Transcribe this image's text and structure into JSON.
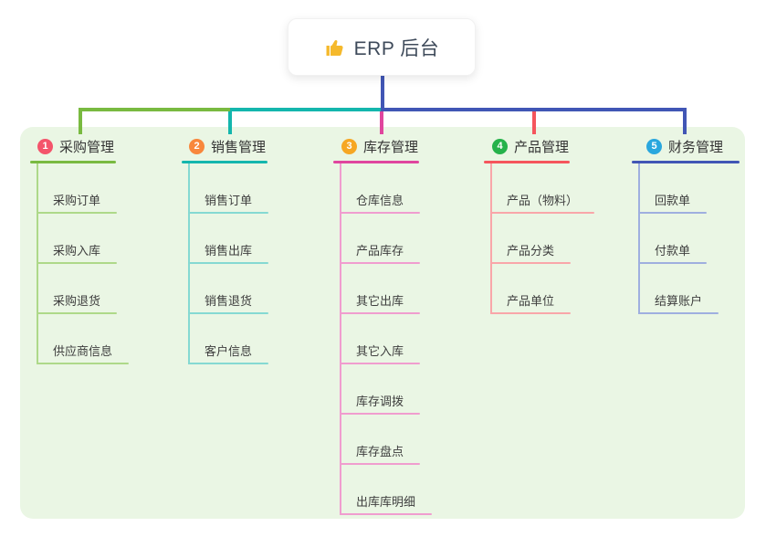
{
  "root": {
    "title": "ERP 后台",
    "icon": "thumbs-up-icon"
  },
  "colors": {
    "background": "#ffffff",
    "panel": "#eaf6e4",
    "connector": "#4156b5",
    "root_icon": "#f5b92c"
  },
  "branches": [
    {
      "num": "1",
      "title": "采购管理",
      "badge_color": "#f4546b",
      "line_color": "#79ba40",
      "light_line_color": "#aed989",
      "children": [
        "采购订单",
        "采购入库",
        "采购退货",
        "供应商信息"
      ]
    },
    {
      "num": "2",
      "title": "销售管理",
      "badge_color": "#f8873c",
      "line_color": "#14b6ad",
      "light_line_color": "#85d9d2",
      "children": [
        "销售订单",
        "销售出库",
        "销售退货",
        "客户信息"
      ]
    },
    {
      "num": "3",
      "title": "库存管理",
      "badge_color": "#f6a723",
      "line_color": "#e0459e",
      "light_line_color": "#f09dcf",
      "children": [
        "仓库信息",
        "产品库存",
        "其它出库",
        "其它入库",
        "库存调拨",
        "库存盘点",
        "出库库明细"
      ]
    },
    {
      "num": "4",
      "title": "产品管理",
      "badge_color": "#26b24b",
      "line_color": "#f5555c",
      "light_line_color": "#f9a6a9",
      "children": [
        "产品（物料）",
        "产品分类",
        "产品单位"
      ]
    },
    {
      "num": "5",
      "title": "财务管理",
      "badge_color": "#2aa7de",
      "line_color": "#4156b5",
      "light_line_color": "#9fafdf",
      "children": [
        "回款单",
        "付款单",
        "结算账户"
      ]
    }
  ]
}
